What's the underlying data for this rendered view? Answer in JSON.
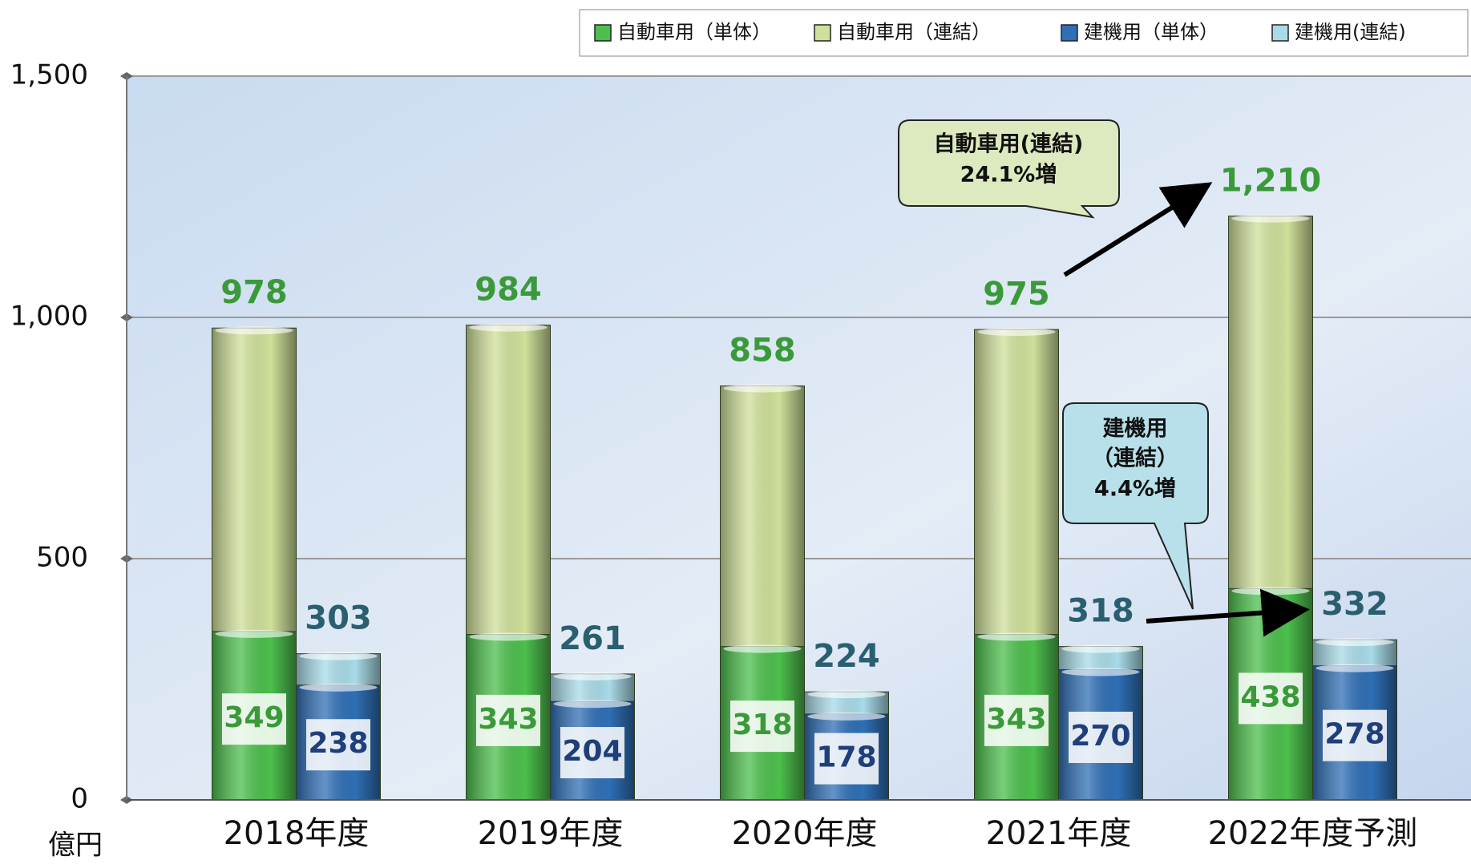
{
  "chart_data": {
    "type": "bar",
    "y_unit": "億円",
    "categories": [
      "2018年度",
      "2019年度",
      "2020年度",
      "2021年度",
      "2022年度予測"
    ],
    "series": [
      {
        "name": "自動車用（単体）",
        "color": "#4cbf4c",
        "label_color": "#3a9a3a",
        "values": [
          349,
          343,
          318,
          343,
          438
        ]
      },
      {
        "name": "自動車用（連結）",
        "color": "#cfe09a",
        "label_color": "#3a9a3a",
        "values": [
          978,
          984,
          858,
          975,
          1210
        ],
        "value_labels": [
          "978",
          "984",
          "858",
          "975",
          "1,210"
        ]
      },
      {
        "name": "建機用（単体）",
        "color": "#2f6fb5",
        "label_color": "#1f3f7a",
        "values": [
          238,
          204,
          178,
          270,
          278
        ]
      },
      {
        "name": "建機用(連結)",
        "color": "#a8dbe8",
        "label_color": "#2a5f6f",
        "values": [
          303,
          261,
          224,
          318,
          332
        ]
      }
    ],
    "ylim": [
      0,
      1500
    ],
    "yticks": [
      0,
      500,
      {
        "value": 1000,
        "label": "1,000"
      },
      {
        "value": 1500,
        "label": "1,500"
      }
    ],
    "grid": true,
    "legend": "top-right",
    "annotations": [
      {
        "text": [
          "自動車用(連結)",
          "24.1%増"
        ]
      },
      {
        "text": [
          "建機用",
          "（連結）",
          "4.4%増"
        ]
      }
    ]
  }
}
